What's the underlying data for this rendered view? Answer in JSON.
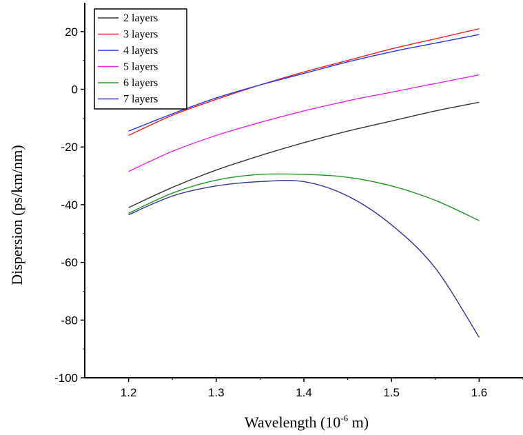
{
  "chart_data": {
    "type": "line",
    "title": "",
    "xlabel": "Wavelength (10",
    "xlabel_sup": "-6",
    "xlabel_tail": " m)",
    "ylabel": "Dispersion (ps/km/nm)",
    "xlim": [
      1.15,
      1.65
    ],
    "ylim": [
      -100,
      30
    ],
    "x_ticks": [
      1.2,
      1.3,
      1.4,
      1.5,
      1.6
    ],
    "x_tick_labels": [
      "1.2",
      "1.3",
      "1.4",
      "1.5",
      "1.6"
    ],
    "y_ticks": [
      -100,
      -80,
      -60,
      -40,
      -20,
      0,
      20
    ],
    "y_tick_labels": [
      "-100",
      "-80",
      "-60",
      "-40",
      "-20",
      "0",
      "20"
    ],
    "grid": false,
    "legend_position": "top-left",
    "x": [
      1.2,
      1.25,
      1.3,
      1.35,
      1.4,
      1.45,
      1.5,
      1.55,
      1.6
    ],
    "series": [
      {
        "name": "2 layers",
        "color": "#333333",
        "values": [
          -41,
          -34,
          -28,
          -23,
          -18.5,
          -14.5,
          -11,
          -7.5,
          -4.5
        ]
      },
      {
        "name": "3 layers",
        "color": "#ee2222",
        "values": [
          -16,
          -9,
          -3.5,
          1.5,
          6,
          10,
          14,
          17.5,
          21
        ]
      },
      {
        "name": "4 layers",
        "color": "#2233ee",
        "values": [
          -14.5,
          -8.5,
          -3,
          1.5,
          5.5,
          9.5,
          13,
          16,
          19
        ]
      },
      {
        "name": "5 layers",
        "color": "#ee22ee",
        "values": [
          -28.5,
          -21.5,
          -16,
          -11.5,
          -7.5,
          -4,
          -1,
          2,
          5
        ]
      },
      {
        "name": "6 layers",
        "color": "#229922",
        "values": [
          -43,
          -36,
          -31.5,
          -29.5,
          -29.5,
          -30.5,
          -33.5,
          -38.5,
          -45.5
        ]
      },
      {
        "name": "7 layers",
        "color": "#333399",
        "values": [
          -43.5,
          -37,
          -33.5,
          -32,
          -32,
          -37,
          -47,
          -62,
          -86
        ]
      }
    ]
  }
}
